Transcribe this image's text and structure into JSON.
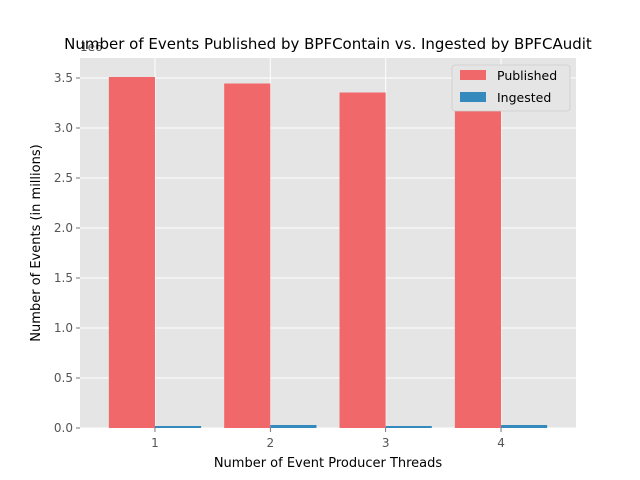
{
  "chart_data": {
    "type": "bar",
    "title": "Number of Events Published by BPFContain vs. Ingested by BPFCAudit",
    "xlabel": "Number of Event Producer Threads",
    "ylabel": "Number of Events (in millions)",
    "offset_label": "1e6",
    "categories": [
      "1",
      "2",
      "3",
      "4"
    ],
    "series": [
      {
        "name": "Published",
        "color": "#f0686a",
        "values": [
          3.51,
          3.445,
          3.355,
          3.41
        ]
      },
      {
        "name": "Ingested",
        "color": "#348abd",
        "values": [
          0.02,
          0.03,
          0.02,
          0.03
        ]
      }
    ],
    "yticks": [
      "0.0",
      "0.5",
      "1.0",
      "1.5",
      "2.0",
      "2.5",
      "3.0",
      "3.5"
    ],
    "ylim": [
      0,
      3.7
    ],
    "grid": true,
    "legend": "top-right",
    "background": "#e5e5e5",
    "gridcolor": "#ffffff"
  }
}
